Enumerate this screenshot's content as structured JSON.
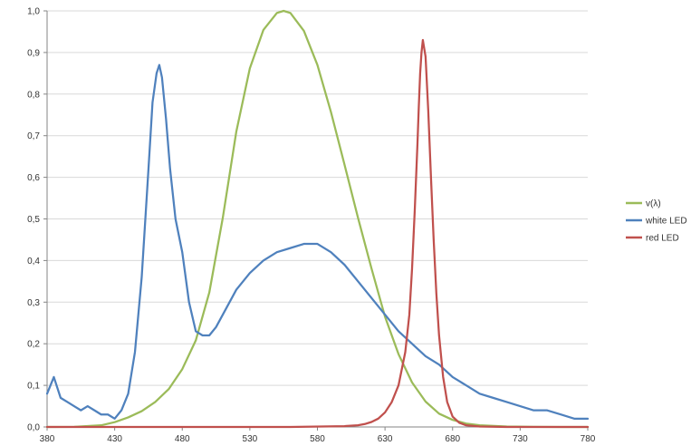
{
  "chart_data": {
    "type": "line",
    "title": "",
    "xlabel": "",
    "ylabel": "",
    "xlim": [
      380,
      780
    ],
    "ylim": [
      0,
      1
    ],
    "x_ticks": [
      "380",
      "430",
      "480",
      "530",
      "580",
      "630",
      "680",
      "730",
      "780"
    ],
    "y_ticks": [
      "0,0",
      "0,1",
      "0,2",
      "0,3",
      "0,4",
      "0,5",
      "0,6",
      "0,7",
      "0,8",
      "0,9",
      "1,0"
    ],
    "grid": "horizontal",
    "legend_position": "right",
    "series": [
      {
        "name": "v(λ)",
        "color": "#9BBB59",
        "x": [
          380,
          400,
          420,
          430,
          440,
          450,
          460,
          470,
          480,
          490,
          500,
          510,
          520,
          530,
          540,
          550,
          555,
          560,
          570,
          580,
          590,
          600,
          610,
          620,
          630,
          640,
          650,
          660,
          670,
          680,
          690,
          700,
          720,
          740,
          760,
          780
        ],
        "y": [
          4e-05,
          0.0004,
          0.004,
          0.0116,
          0.023,
          0.038,
          0.06,
          0.091,
          0.139,
          0.208,
          0.323,
          0.503,
          0.71,
          0.862,
          0.954,
          0.995,
          1.0,
          0.995,
          0.952,
          0.87,
          0.757,
          0.631,
          0.503,
          0.381,
          0.265,
          0.175,
          0.107,
          0.061,
          0.032,
          0.017,
          0.0082,
          0.0041,
          0.001,
          0.00025,
          6e-05,
          1.5e-05
        ]
      },
      {
        "name": "white LED",
        "color": "#4F81BD",
        "x": [
          380,
          385,
          390,
          395,
          400,
          405,
          410,
          415,
          420,
          425,
          430,
          435,
          440,
          445,
          450,
          455,
          458,
          461,
          463,
          465,
          468,
          471,
          475,
          480,
          485,
          490,
          495,
          500,
          505,
          510,
          515,
          520,
          530,
          540,
          550,
          560,
          570,
          580,
          590,
          600,
          610,
          620,
          630,
          640,
          650,
          660,
          670,
          680,
          690,
          700,
          710,
          720,
          730,
          740,
          750,
          760,
          770,
          780
        ],
        "y": [
          0.08,
          0.12,
          0.07,
          0.06,
          0.05,
          0.04,
          0.05,
          0.04,
          0.03,
          0.03,
          0.02,
          0.04,
          0.08,
          0.18,
          0.36,
          0.62,
          0.78,
          0.85,
          0.87,
          0.84,
          0.74,
          0.62,
          0.5,
          0.42,
          0.3,
          0.23,
          0.22,
          0.22,
          0.24,
          0.27,
          0.3,
          0.33,
          0.37,
          0.4,
          0.42,
          0.43,
          0.44,
          0.44,
          0.42,
          0.39,
          0.35,
          0.31,
          0.27,
          0.23,
          0.2,
          0.17,
          0.15,
          0.12,
          0.1,
          0.08,
          0.07,
          0.06,
          0.05,
          0.04,
          0.04,
          0.03,
          0.02,
          0.02
        ]
      },
      {
        "name": "red LED",
        "color": "#C0504D",
        "x": [
          380,
          560,
          600,
          610,
          615,
          620,
          625,
          630,
          635,
          640,
          645,
          648,
          650,
          652,
          654,
          655,
          656,
          657,
          658,
          660,
          662,
          664,
          666,
          668,
          670,
          673,
          676,
          680,
          685,
          690,
          700,
          720,
          780
        ],
        "y": [
          0,
          0,
          0.002,
          0.004,
          0.007,
          0.012,
          0.02,
          0.035,
          0.06,
          0.1,
          0.18,
          0.27,
          0.38,
          0.52,
          0.68,
          0.77,
          0.85,
          0.9,
          0.93,
          0.89,
          0.76,
          0.6,
          0.45,
          0.32,
          0.22,
          0.12,
          0.06,
          0.025,
          0.01,
          0.004,
          0.001,
          0,
          0
        ]
      }
    ]
  }
}
